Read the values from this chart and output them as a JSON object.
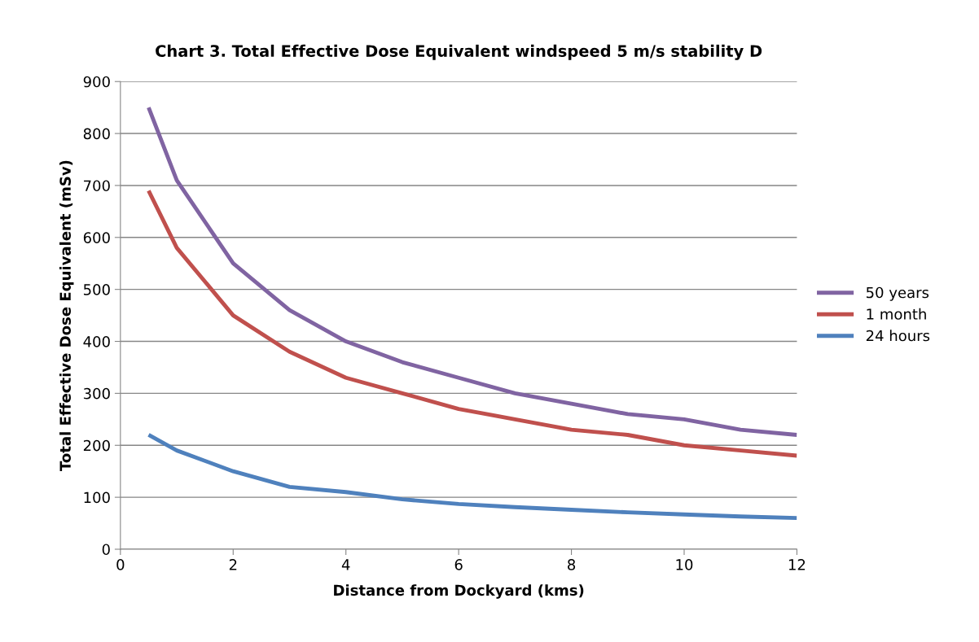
{
  "chart_data": {
    "type": "line",
    "title": "Chart 3. Total Effective Dose Equivalent windspeed 5 m/s stability D",
    "xlabel": "Distance from Dockyard (kms)",
    "ylabel": "Total Effective Dose Equivalent (mSv)",
    "x": [
      0.5,
      1,
      2,
      3,
      4,
      5,
      6,
      7,
      8,
      9,
      10,
      11,
      12
    ],
    "series": [
      {
        "name": "50 years",
        "color": "#8064a2",
        "values": [
          850,
          710,
          550,
          460,
          400,
          360,
          330,
          300,
          280,
          260,
          250,
          230,
          220
        ]
      },
      {
        "name": "1 month",
        "color": "#c0504d",
        "values": [
          690,
          580,
          450,
          380,
          330,
          300,
          270,
          250,
          230,
          220,
          200,
          190,
          180
        ]
      },
      {
        "name": "24 hours",
        "color": "#4f81bd",
        "values": [
          220,
          190,
          150,
          120,
          110,
          96,
          87,
          81,
          76,
          71,
          67,
          63,
          60
        ]
      }
    ],
    "xlim": [
      0,
      12
    ],
    "xticks": [
      0,
      2,
      4,
      6,
      8,
      10,
      12
    ],
    "ylim": [
      0,
      900
    ],
    "yticks": [
      0,
      100,
      200,
      300,
      400,
      500,
      600,
      700,
      800,
      900
    ],
    "grid": "y",
    "legend": "right",
    "marker": "none",
    "line_style": "solid"
  }
}
